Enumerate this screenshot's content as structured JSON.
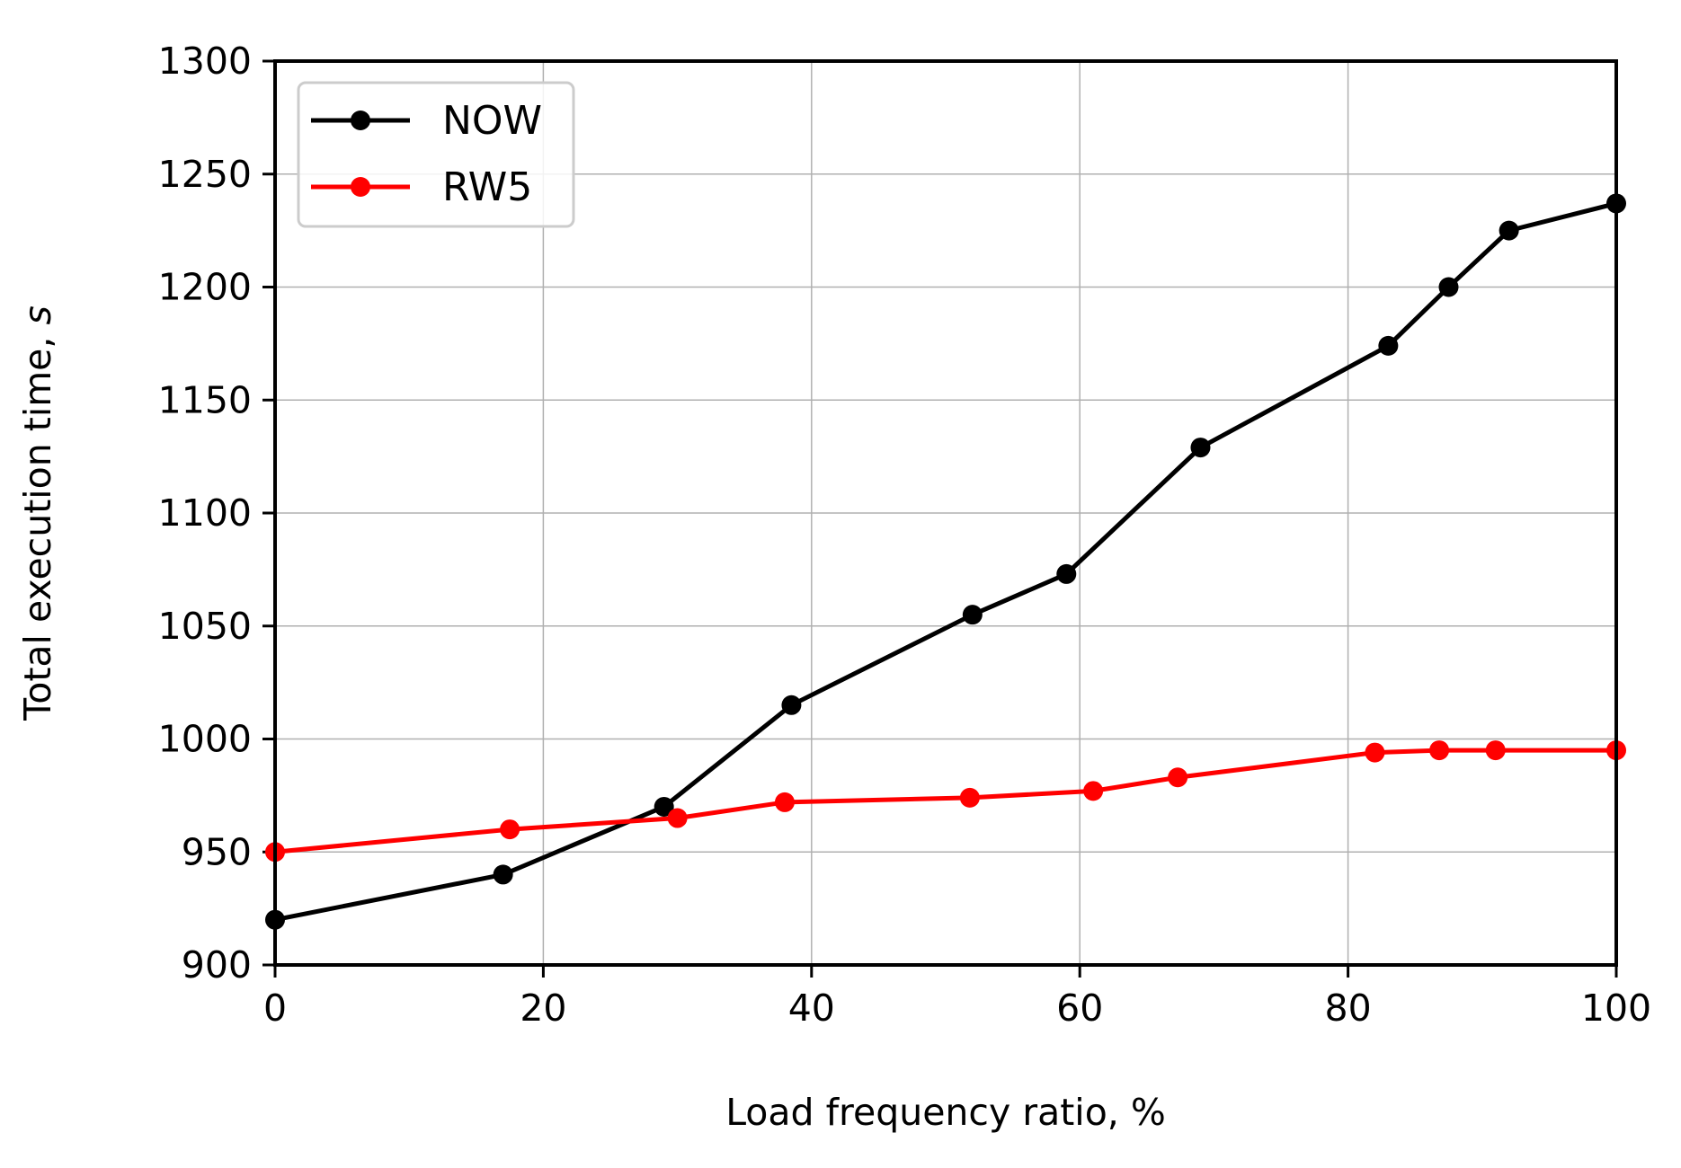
{
  "chart_data": {
    "type": "line",
    "title": "",
    "xlabel": "Load frequency ratio, %",
    "ylabel": "Total execution time, s",
    "ylabel_prefix": "Total execution time, ",
    "ylabel_unit": "s",
    "xlim": [
      0,
      100
    ],
    "ylim": [
      900,
      1300
    ],
    "xticks": [
      0,
      20,
      40,
      60,
      80,
      100
    ],
    "yticks": [
      900,
      950,
      1000,
      1050,
      1100,
      1150,
      1200,
      1250,
      1300
    ],
    "grid": true,
    "legend_position": "top-left",
    "series": [
      {
        "name": "NOW",
        "color": "#000000",
        "x": [
          0,
          17,
          29,
          38.5,
          52,
          59,
          69,
          83,
          87.5,
          92,
          100
        ],
        "y": [
          920,
          940,
          970,
          1015,
          1055,
          1073,
          1129,
          1174,
          1200,
          1225,
          1237
        ]
      },
      {
        "name": "RW5",
        "color": "#ff0000",
        "x": [
          0,
          17.5,
          30,
          38,
          51.8,
          61,
          67.3,
          82,
          86.8,
          91,
          100
        ],
        "y": [
          950,
          960,
          965,
          972,
          974,
          977,
          983,
          994,
          995,
          995,
          995
        ]
      }
    ]
  }
}
